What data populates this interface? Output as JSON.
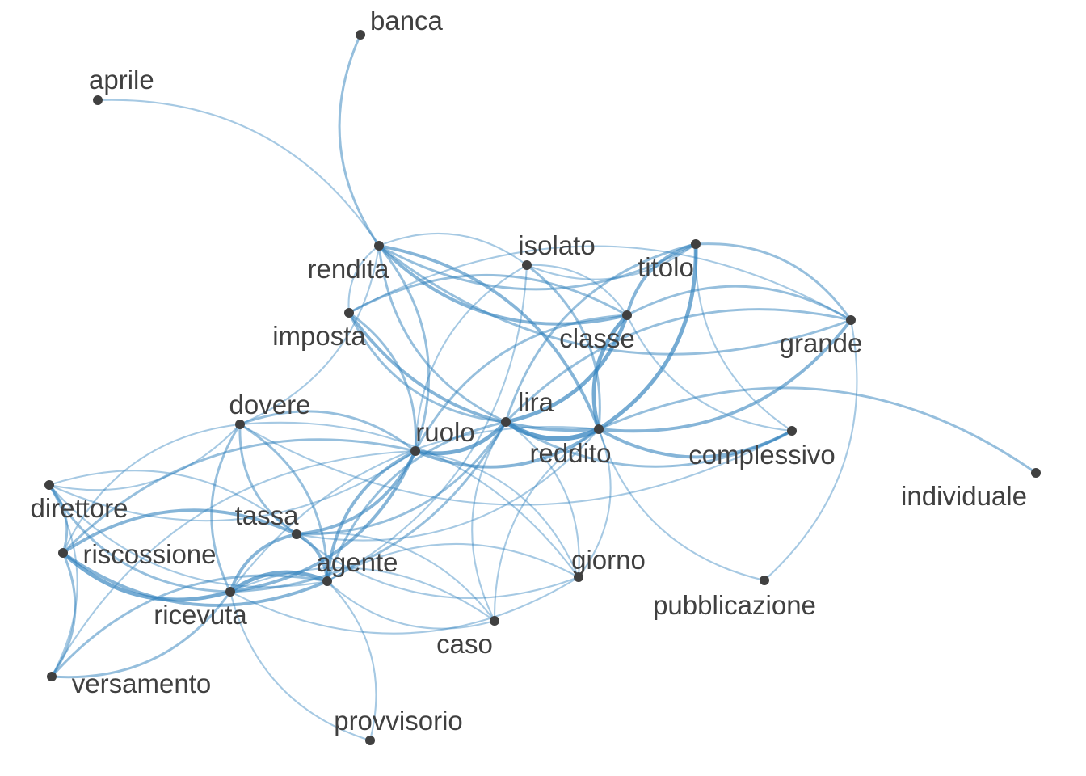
{
  "graph": {
    "type": "network",
    "edge_color": "#3182bd",
    "node_color": "#404040",
    "label_color": "#404040",
    "nodes": [
      {
        "id": "banca",
        "label": "banca"
      },
      {
        "id": "aprile",
        "label": "aprile"
      },
      {
        "id": "rendita",
        "label": "rendita"
      },
      {
        "id": "isolato",
        "label": "isolato"
      },
      {
        "id": "titolo",
        "label": "titolo"
      },
      {
        "id": "imposta",
        "label": "imposta"
      },
      {
        "id": "classe",
        "label": "classe"
      },
      {
        "id": "grande",
        "label": "grande"
      },
      {
        "id": "dovere",
        "label": "dovere"
      },
      {
        "id": "lira",
        "label": "lira"
      },
      {
        "id": "ruolo",
        "label": "ruolo"
      },
      {
        "id": "reddito",
        "label": "reddito"
      },
      {
        "id": "complessivo",
        "label": "complessivo"
      },
      {
        "id": "individuale",
        "label": "individuale"
      },
      {
        "id": "direttore",
        "label": "direttore"
      },
      {
        "id": "tassa",
        "label": "tassa"
      },
      {
        "id": "riscossione",
        "label": "riscossione"
      },
      {
        "id": "agente",
        "label": "agente"
      },
      {
        "id": "giorno",
        "label": "giorno"
      },
      {
        "id": "ricevuta",
        "label": "ricevuta"
      },
      {
        "id": "pubblicazione",
        "label": "pubblicazione"
      },
      {
        "id": "caso",
        "label": "caso"
      },
      {
        "id": "versamento",
        "label": "versamento"
      },
      {
        "id": "provvisorio",
        "label": "provvisorio"
      }
    ],
    "edges": [
      {
        "source": "banca",
        "target": "rendita",
        "weight": 2
      },
      {
        "source": "aprile",
        "target": "rendita",
        "weight": 1
      },
      {
        "source": "rendita",
        "target": "titolo",
        "weight": 2
      },
      {
        "source": "rendita",
        "target": "isolato",
        "weight": 1
      },
      {
        "source": "rendita",
        "target": "classe",
        "weight": 3
      },
      {
        "source": "rendita",
        "target": "reddito",
        "weight": 3
      },
      {
        "source": "rendita",
        "target": "lira",
        "weight": 2
      },
      {
        "source": "rendita",
        "target": "ruolo",
        "weight": 2
      },
      {
        "source": "rendita",
        "target": "grande",
        "weight": 2
      },
      {
        "source": "rendita",
        "target": "dovere",
        "weight": 1
      },
      {
        "source": "rendita",
        "target": "imposta",
        "weight": 1
      },
      {
        "source": "isolato",
        "target": "reddito",
        "weight": 2
      },
      {
        "source": "isolato",
        "target": "ruolo",
        "weight": 1
      },
      {
        "source": "isolato",
        "target": "agente",
        "weight": 1
      },
      {
        "source": "isolato",
        "target": "titolo",
        "weight": 1
      },
      {
        "source": "isolato",
        "target": "classe",
        "weight": 1
      },
      {
        "source": "titolo",
        "target": "classe",
        "weight": 3
      },
      {
        "source": "titolo",
        "target": "reddito",
        "weight": 4
      },
      {
        "source": "titolo",
        "target": "lira",
        "weight": 2
      },
      {
        "source": "titolo",
        "target": "grande",
        "weight": 2
      },
      {
        "source": "titolo",
        "target": "complessivo",
        "weight": 1
      },
      {
        "source": "imposta",
        "target": "classe",
        "weight": 2
      },
      {
        "source": "imposta",
        "target": "reddito",
        "weight": 3
      },
      {
        "source": "imposta",
        "target": "ruolo",
        "weight": 2
      },
      {
        "source": "imposta",
        "target": "lira",
        "weight": 2
      },
      {
        "source": "imposta",
        "target": "grande",
        "weight": 1
      },
      {
        "source": "classe",
        "target": "reddito",
        "weight": 4
      },
      {
        "source": "classe",
        "target": "lira",
        "weight": 4
      },
      {
        "source": "classe",
        "target": "ruolo",
        "weight": 2
      },
      {
        "source": "classe",
        "target": "grande",
        "weight": 2
      },
      {
        "source": "classe",
        "target": "complessivo",
        "weight": 1
      },
      {
        "source": "grande",
        "target": "reddito",
        "weight": 3
      },
      {
        "source": "grande",
        "target": "lira",
        "weight": 2
      },
      {
        "source": "grande",
        "target": "pubblicazione",
        "weight": 1
      },
      {
        "source": "dovere",
        "target": "complessivo",
        "weight": 1
      },
      {
        "source": "dovere",
        "target": "ruolo",
        "weight": 2
      },
      {
        "source": "dovere",
        "target": "tassa",
        "weight": 2
      },
      {
        "source": "dovere",
        "target": "agente",
        "weight": 2
      },
      {
        "source": "dovere",
        "target": "ricevuta",
        "weight": 2
      },
      {
        "source": "dovere",
        "target": "direttore",
        "weight": 1
      },
      {
        "source": "dovere",
        "target": "riscossione",
        "weight": 1
      },
      {
        "source": "dovere",
        "target": "giorno",
        "weight": 1
      },
      {
        "source": "lira",
        "target": "reddito",
        "weight": 5
      },
      {
        "source": "lira",
        "target": "ruolo",
        "weight": 4
      },
      {
        "source": "lira",
        "target": "complessivo",
        "weight": 2
      },
      {
        "source": "lira",
        "target": "tassa",
        "weight": 2
      },
      {
        "source": "lira",
        "target": "agente",
        "weight": 2
      },
      {
        "source": "lira",
        "target": "ricevuta",
        "weight": 2
      },
      {
        "source": "lira",
        "target": "caso",
        "weight": 1
      },
      {
        "source": "lira",
        "target": "giorno",
        "weight": 1
      },
      {
        "source": "ruolo",
        "target": "reddito",
        "weight": 3
      },
      {
        "source": "ruolo",
        "target": "tassa",
        "weight": 3
      },
      {
        "source": "ruolo",
        "target": "agente",
        "weight": 3
      },
      {
        "source": "ruolo",
        "target": "ricevuta",
        "weight": 3
      },
      {
        "source": "ruolo",
        "target": "riscossione",
        "weight": 2
      },
      {
        "source": "ruolo",
        "target": "direttore",
        "weight": 1
      },
      {
        "source": "ruolo",
        "target": "versamento",
        "weight": 1
      },
      {
        "source": "ruolo",
        "target": "giorno",
        "weight": 1
      },
      {
        "source": "reddito",
        "target": "complessivo",
        "weight": 3
      },
      {
        "source": "reddito",
        "target": "individuale",
        "weight": 2
      },
      {
        "source": "reddito",
        "target": "pubblicazione",
        "weight": 1
      },
      {
        "source": "reddito",
        "target": "giorno",
        "weight": 1
      },
      {
        "source": "reddito",
        "target": "caso",
        "weight": 1
      },
      {
        "source": "reddito",
        "target": "tassa",
        "weight": 1
      },
      {
        "source": "reddito",
        "target": "ricevuta",
        "weight": 1
      },
      {
        "source": "direttore",
        "target": "riscossione",
        "weight": 2
      },
      {
        "source": "direttore",
        "target": "ricevuta",
        "weight": 2
      },
      {
        "source": "direttore",
        "target": "tassa",
        "weight": 1
      },
      {
        "source": "direttore",
        "target": "agente",
        "weight": 1
      },
      {
        "source": "direttore",
        "target": "versamento",
        "weight": 1
      },
      {
        "source": "riscossione",
        "target": "ricevuta",
        "weight": 4
      },
      {
        "source": "riscossione",
        "target": "tassa",
        "weight": 3
      },
      {
        "source": "riscossione",
        "target": "agente",
        "weight": 3
      },
      {
        "source": "riscossione",
        "target": "versamento",
        "weight": 2
      },
      {
        "source": "tassa",
        "target": "ricevuta",
        "weight": 3
      },
      {
        "source": "tassa",
        "target": "agente",
        "weight": 3
      },
      {
        "source": "tassa",
        "target": "giorno",
        "weight": 1
      },
      {
        "source": "tassa",
        "target": "caso",
        "weight": 1
      },
      {
        "source": "agente",
        "target": "ricevuta",
        "weight": 4
      },
      {
        "source": "agente",
        "target": "giorno",
        "weight": 1
      },
      {
        "source": "agente",
        "target": "caso",
        "weight": 1
      },
      {
        "source": "agente",
        "target": "provvisorio",
        "weight": 1
      },
      {
        "source": "agente",
        "target": "versamento",
        "weight": 2
      },
      {
        "source": "ricevuta",
        "target": "versamento",
        "weight": 2
      },
      {
        "source": "ricevuta",
        "target": "provvisorio",
        "weight": 1
      },
      {
        "source": "ricevuta",
        "target": "caso",
        "weight": 1
      },
      {
        "source": "ricevuta",
        "target": "giorno",
        "weight": 1
      }
    ]
  }
}
